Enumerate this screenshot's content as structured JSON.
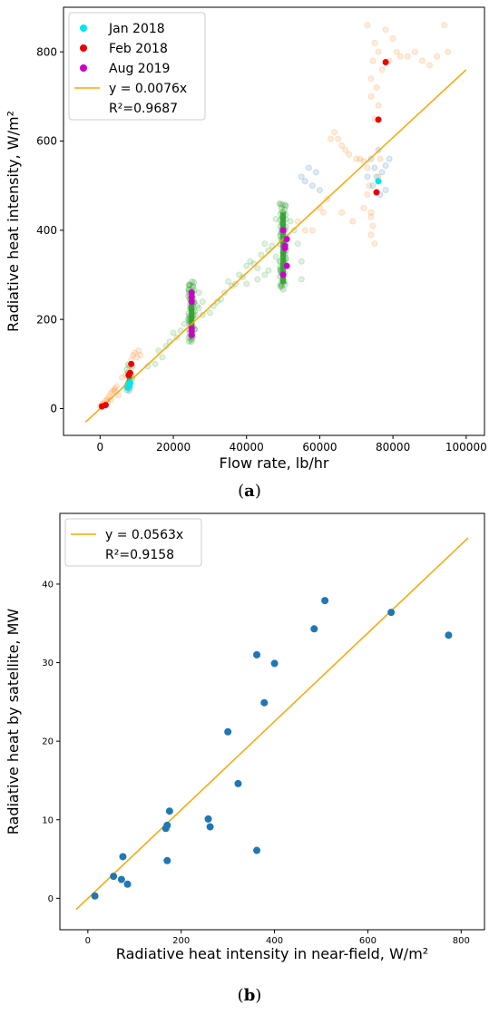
{
  "chart_data": [
    {
      "panel": "a",
      "type": "scatter",
      "caption": "a",
      "xlabel": "Flow rate, lb/hr",
      "ylabel": "Radiative heat intensity, W/m²",
      "xlim": [
        -10000,
        105000
      ],
      "ylim": [
        -60,
        900
      ],
      "xticks": [
        0,
        20000,
        40000,
        60000,
        80000,
        100000
      ],
      "yticks": [
        0,
        200,
        400,
        600,
        800
      ],
      "grid": false,
      "legend_position": "top-left",
      "fit": {
        "slope": 0.0076,
        "x_range": [
          -4000,
          100000
        ],
        "label": "y = 0.0076x",
        "r2_label": "R²=0.9687",
        "color": "#ffa500"
      },
      "background_series": [
        {
          "name": "",
          "color": "#ff7f0e",
          "points": [
            [
              0,
              5
            ],
            [
              500,
              10
            ],
            [
              1000,
              12
            ],
            [
              1500,
              18
            ],
            [
              2000,
              22
            ],
            [
              2500,
              28
            ],
            [
              3000,
              35
            ],
            [
              3500,
              40
            ],
            [
              4000,
              45
            ],
            [
              4500,
              50
            ],
            [
              5000,
              30
            ],
            [
              6000,
              70
            ],
            [
              7000,
              75
            ],
            [
              8000,
              95
            ],
            [
              8500,
              110
            ],
            [
              9000,
              120
            ],
            [
              9500,
              125
            ],
            [
              10000,
              115
            ],
            [
              10500,
              130
            ],
            [
              11000,
              120
            ],
            [
              2000,
              15
            ],
            [
              3000,
              20
            ],
            [
              4000,
              40
            ],
            [
              1200,
              8
            ],
            [
              63000,
              605
            ],
            [
              64000,
              620
            ],
            [
              65000,
              605
            ],
            [
              66000,
              590
            ],
            [
              67000,
              580
            ],
            [
              68000,
              570
            ],
            [
              70000,
              560
            ],
            [
              71000,
              560
            ],
            [
              72000,
              555
            ],
            [
              73000,
              540
            ],
            [
              73000,
              860
            ],
            [
              74000,
              700
            ],
            [
              74000,
              740
            ],
            [
              74500,
              780
            ],
            [
              75000,
              650
            ],
            [
              75000,
              820
            ],
            [
              75500,
              720
            ],
            [
              76000,
              800
            ],
            [
              76000,
              680
            ],
            [
              77000,
              760
            ],
            [
              78000,
              850
            ],
            [
              79000,
              780
            ],
            [
              80000,
              830
            ],
            [
              81000,
              800
            ],
            [
              82000,
              790
            ],
            [
              84000,
              790
            ],
            [
              86000,
              800
            ],
            [
              88000,
              780
            ],
            [
              90000,
              770
            ],
            [
              92000,
              790
            ],
            [
              94000,
              860
            ],
            [
              95000,
              800
            ],
            [
              73000,
              480
            ],
            [
              74000,
              430
            ],
            [
              74000,
              440
            ],
            [
              74500,
              410
            ],
            [
              75000,
              370
            ],
            [
              74000,
              390
            ],
            [
              73500,
              500
            ],
            [
              76000,
              520
            ],
            [
              76500,
              560
            ],
            [
              60000,
              450
            ],
            [
              61000,
              440
            ],
            [
              62000,
              470
            ],
            [
              66000,
              440
            ],
            [
              69000,
              420
            ],
            [
              72000,
              450
            ],
            [
              58000,
              400
            ],
            [
              56000,
              400
            ],
            [
              54000,
              420
            ]
          ]
        },
        {
          "name": "",
          "color": "#1f77b4",
          "points": [
            [
              56000,
              510
            ],
            [
              57000,
              540
            ],
            [
              58000,
              500
            ],
            [
              59000,
              530
            ],
            [
              60000,
              490
            ],
            [
              74000,
              560
            ],
            [
              75000,
              540
            ],
            [
              75500,
              520
            ],
            [
              76000,
              580
            ],
            [
              77000,
              530
            ],
            [
              78000,
              490
            ],
            [
              76500,
              480
            ],
            [
              74500,
              500
            ],
            [
              78000,
              545
            ],
            [
              79000,
              560
            ],
            [
              55000,
              520
            ],
            [
              73000,
              520
            ],
            [
              8000,
              45
            ],
            [
              8000,
              40
            ],
            [
              7500,
              55
            ],
            [
              7000,
              50
            ]
          ]
        },
        {
          "name": "",
          "color": "#2ca02c",
          "points": [
            [
              13000,
              95
            ],
            [
              15000,
              100
            ],
            [
              16000,
              130
            ],
            [
              17000,
              115
            ],
            [
              18000,
              140
            ],
            [
              19000,
              150
            ],
            [
              20000,
              170
            ],
            [
              21000,
              160
            ],
            [
              22000,
              175
            ],
            [
              23000,
              190
            ],
            [
              24000,
              200
            ],
            [
              26000,
              210
            ],
            [
              27000,
              225
            ],
            [
              28000,
              210
            ],
            [
              30000,
              215
            ],
            [
              31000,
              230
            ],
            [
              32000,
              240
            ],
            [
              33000,
              245
            ],
            [
              34000,
              260
            ],
            [
              35000,
              285
            ],
            [
              36000,
              275
            ],
            [
              37000,
              280
            ],
            [
              38000,
              300
            ],
            [
              39000,
              295
            ],
            [
              40000,
              320
            ],
            [
              41000,
              330
            ],
            [
              42000,
              325
            ],
            [
              43000,
              315
            ],
            [
              44000,
              345
            ],
            [
              45000,
              370
            ],
            [
              46000,
              355
            ],
            [
              47000,
              365
            ],
            [
              48000,
              340
            ],
            [
              49000,
              330
            ],
            [
              52000,
              420
            ],
            [
              53000,
              400
            ],
            [
              54000,
              370
            ],
            [
              55000,
              330
            ],
            [
              55000,
              290
            ],
            [
              45000,
              300
            ],
            [
              43000,
              290
            ],
            [
              40000,
              280
            ],
            [
              48000,
              425
            ],
            [
              49000,
              460
            ],
            [
              46000,
              310
            ],
            [
              27000,
              260
            ],
            [
              26500,
              230
            ],
            [
              28000,
              240
            ]
          ]
        },
        {
          "name": "",
          "color": "#2ca02c",
          "dense_columns": [
            {
              "x": 25000,
              "y_min": 150,
              "y_max": 285,
              "count": 60
            },
            {
              "x": 50000,
              "y_min": 270,
              "y_max": 460,
              "count": 70
            },
            {
              "x": 8000,
              "y_min": 40,
              "y_max": 100,
              "count": 10
            }
          ]
        }
      ],
      "series": [
        {
          "name": "Jan 2018",
          "color": "#00e5ee",
          "points": [
            [
              7500,
              47
            ],
            [
              8000,
              52
            ],
            [
              8200,
              58
            ],
            [
              76000,
              510
            ]
          ]
        },
        {
          "name": "Feb 2018",
          "color": "#ee0000",
          "points": [
            [
              500,
              5
            ],
            [
              1500,
              8
            ],
            [
              7800,
              75
            ],
            [
              8200,
              80
            ],
            [
              8500,
              100
            ],
            [
              76000,
              648
            ],
            [
              75500,
              485
            ],
            [
              78000,
              777
            ]
          ]
        },
        {
          "name": "Aug 2019",
          "color": "#cc00cc",
          "points": [
            [
              25000,
              165
            ],
            [
              25000,
              175
            ],
            [
              25000,
              180
            ],
            [
              25000,
              240
            ],
            [
              25000,
              250
            ],
            [
              25000,
              260
            ],
            [
              50000,
              300
            ],
            [
              51000,
              320
            ],
            [
              50500,
              360
            ],
            [
              51000,
              380
            ],
            [
              50000,
              400
            ],
            [
              50500,
              365
            ]
          ]
        }
      ]
    },
    {
      "panel": "b",
      "type": "scatter",
      "caption": "b",
      "xlabel": "Radiative heat intensity in near-field, W/m²",
      "ylabel": "Radiative heat by satellite, MW",
      "xlim": [
        -60,
        850
      ],
      "ylim": [
        -4,
        49
      ],
      "xticks": [
        0,
        200,
        400,
        600,
        800
      ],
      "yticks": [
        0,
        10,
        20,
        30,
        40
      ],
      "grid": false,
      "legend_position": "top-left",
      "fit": {
        "slope": 0.0563,
        "x_range": [
          -25,
          815
        ],
        "label": "y = 0.0563x",
        "r2_label": "R²=0.9158",
        "color": "#ffa500"
      },
      "series": [
        {
          "name": "",
          "color": "#1f77b4",
          "points": [
            [
              15,
              0.3
            ],
            [
              55,
              2.8
            ],
            [
              72,
              2.4
            ],
            [
              75,
              5.3
            ],
            [
              85,
              1.8
            ],
            [
              167,
              8.9
            ],
            [
              170,
              9.3
            ],
            [
              170,
              4.8
            ],
            [
              175,
              11.1
            ],
            [
              258,
              10.1
            ],
            [
              262,
              9.1
            ],
            [
              300,
              21.2
            ],
            [
              322,
              14.6
            ],
            [
              362,
              31.0
            ],
            [
              362,
              6.1
            ],
            [
              378,
              24.9
            ],
            [
              400,
              29.9
            ],
            [
              485,
              34.3
            ],
            [
              508,
              37.9
            ],
            [
              650,
              36.4
            ],
            [
              773,
              33.5
            ]
          ]
        }
      ]
    }
  ]
}
